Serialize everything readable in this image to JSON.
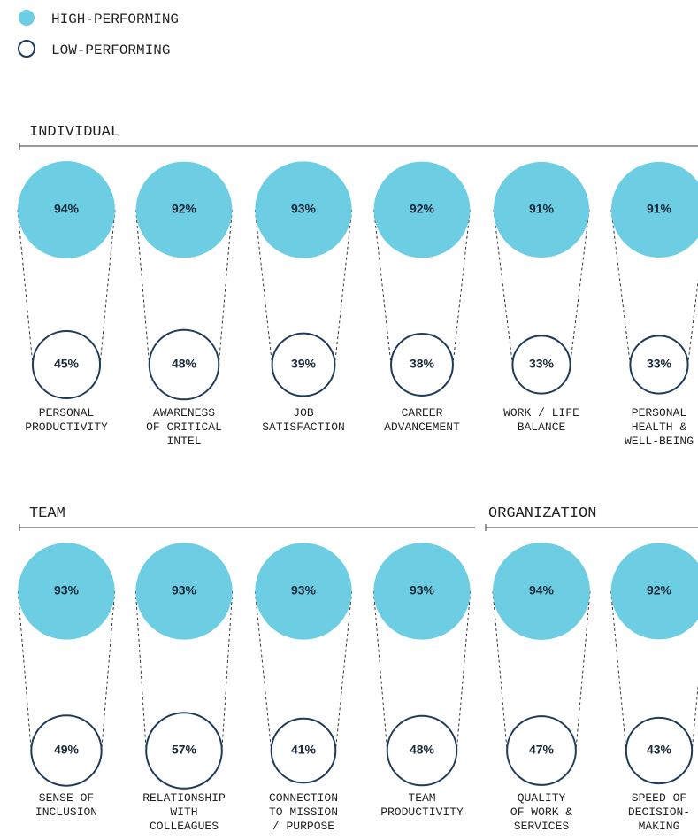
{
  "chart_data": {
    "type": "bubble",
    "sections": [
      "INDIVIDUAL",
      "TEAM",
      "ORGANIZATION"
    ],
    "categories": [
      "PERSONAL\nPRODUCTIVITY",
      "AWARENESS\nOF CRITICAL\nINTEL",
      "JOB\nSATISFACTION",
      "CAREER\nADVANCEMENT",
      "WORK / LIFE\nBALANCE",
      "PERSONAL\nHEALTH &\nWELL-BEING",
      "SENSE OF\nINCLUSION",
      "RELATIONSHIP\nWITH\nCOLLEAGUES",
      "CONNECTION\nTO MISSION\n/ PURPOSE",
      "TEAM\nPRODUCTIVITY",
      "QUALITY\nOF WORK &\nSERVICES",
      "SPEED OF\nDECISION-\nMAKING"
    ],
    "series": [
      {
        "name": "HIGH-PERFORMING",
        "color": "#6ccde3",
        "values": [
          94,
          92,
          93,
          92,
          91,
          91,
          93,
          93,
          93,
          93,
          94,
          92
        ],
        "value_labels": [
          "94%",
          "92%",
          "93%",
          "92%",
          "91%",
          "91%",
          "93%",
          "93%",
          "93%",
          "93%",
          "94%",
          "92%"
        ]
      },
      {
        "name": "LOW-PERFORMING",
        "color": "#ffffff",
        "values": [
          45,
          48,
          39,
          38,
          33,
          33,
          49,
          57,
          41,
          48,
          47,
          43
        ],
        "value_labels": [
          "45%",
          "48%",
          "39%",
          "38%",
          "33%",
          "33%",
          "49%",
          "57%",
          "41%",
          "48%",
          "47%",
          "43%"
        ]
      }
    ]
  }
}
